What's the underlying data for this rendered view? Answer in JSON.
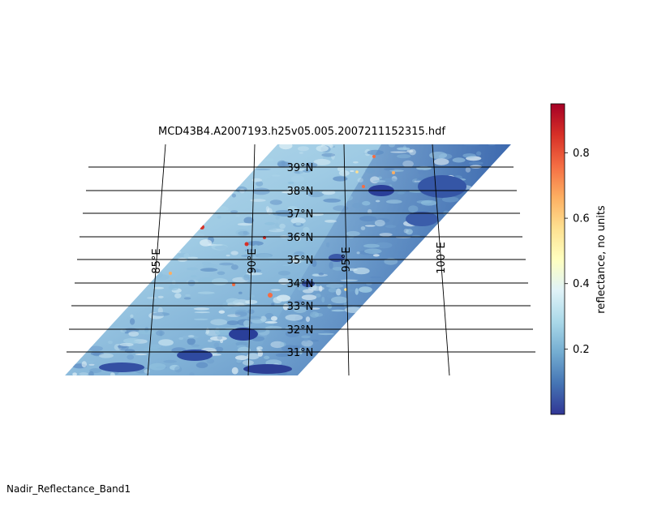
{
  "map": {
    "title": "MCD43B4.A2007193.h25v05.005.2007211152315.hdf",
    "parallels": [
      "39°N",
      "38°N",
      "37°N",
      "36°N",
      "35°N",
      "34°N",
      "33°N",
      "32°N",
      "31°N"
    ],
    "meridians": [
      "85°E",
      "90°E",
      "95°E",
      "100°E"
    ]
  },
  "colorbar": {
    "label": "reflectance, no units",
    "ticks": [
      "0.2",
      "0.4",
      "0.6",
      "0.8"
    ],
    "tick_values": [
      0.2,
      0.4,
      0.6,
      0.8
    ],
    "range": [
      0.0,
      0.95
    ],
    "colormap": "RdYlBu_r",
    "colors": [
      "#313695",
      "#4575b4",
      "#74add1",
      "#abd9e9",
      "#e0f3f8",
      "#ffffbf",
      "#fee090",
      "#fdae61",
      "#f46d43",
      "#d73027",
      "#a50026"
    ]
  },
  "footer": {
    "dataset": "Nadir_Reflectance_Band1"
  }
}
